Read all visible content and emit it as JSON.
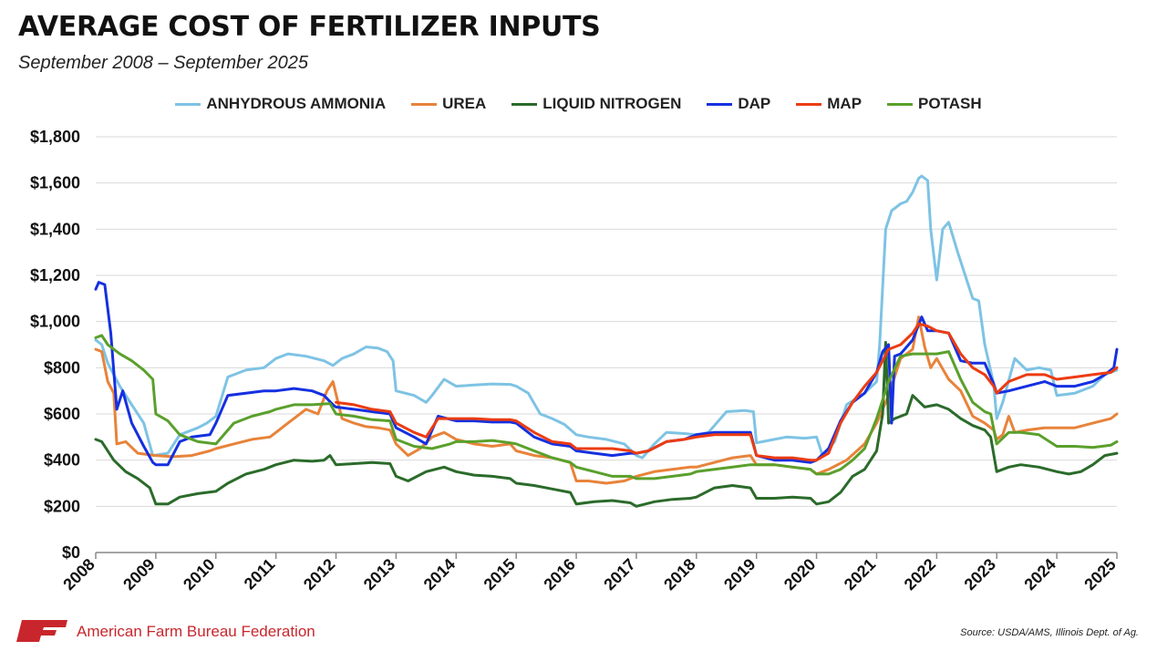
{
  "header": {
    "title": "AVERAGE COST OF FERTILIZER INPUTS",
    "subtitle": "September 2008 – September 2025"
  },
  "footer": {
    "organization": "American Farm Bureau Federation",
    "source": "Source: USDA/AMS, Illinois Dept. of Ag.",
    "logo_color": "#c8262c"
  },
  "chart_data": {
    "type": "line",
    "title": "AVERAGE COST OF FERTILIZER INPUTS",
    "subtitle": "September 2008 – September 2025",
    "xlabel": "",
    "ylabel": "",
    "xlim": [
      2008,
      2025
    ],
    "ylim": [
      0,
      1800
    ],
    "grid": true,
    "legend_position": "top-center",
    "x_ticks": [
      2008,
      2009,
      2010,
      2011,
      2012,
      2013,
      2014,
      2015,
      2016,
      2017,
      2018,
      2019,
      2020,
      2021,
      2022,
      2023,
      2024,
      2025
    ],
    "x_tick_labels": [
      "2008",
      "2009",
      "2010",
      "2011",
      "2012",
      "2013",
      "2014",
      "2015",
      "2016",
      "2017",
      "2018",
      "2019",
      "2020",
      "2021",
      "2022",
      "2023",
      "2024",
      "2025"
    ],
    "y_ticks": [
      0,
      200,
      400,
      600,
      800,
      1000,
      1200,
      1400,
      1600,
      1800
    ],
    "y_tick_labels": [
      "$0",
      "$200",
      "$400",
      "$600",
      "$800",
      "$1,000",
      "$1,200",
      "$1,400",
      "$1,600",
      "$1,800"
    ],
    "series": [
      {
        "name": "ANHYDROUS AMMONIA",
        "color": "#7ec3e4",
        "x": [
          2008.0,
          2008.1,
          2008.2,
          2008.4,
          2008.6,
          2008.8,
          2008.95,
          2009.2,
          2009.4,
          2009.7,
          2009.85,
          2010.0,
          2010.2,
          2010.5,
          2010.8,
          2011.0,
          2011.2,
          2011.5,
          2011.8,
          2011.95,
          2012.1,
          2012.3,
          2012.5,
          2012.7,
          2012.85,
          2012.95,
          2013.0,
          2013.3,
          2013.5,
          2013.6,
          2013.8,
          2014.0,
          2014.3,
          2014.6,
          2014.9,
          2015.0,
          2015.2,
          2015.4,
          2015.6,
          2015.8,
          2016.0,
          2016.2,
          2016.5,
          2016.8,
          2017.0,
          2017.1,
          2017.3,
          2017.5,
          2017.8,
          2018.0,
          2018.2,
          2018.5,
          2018.8,
          2018.95,
          2019.0,
          2019.2,
          2019.5,
          2019.8,
          2020.0,
          2020.1,
          2020.3,
          2020.5,
          2020.8,
          2021.0,
          2021.05,
          2021.1,
          2021.15,
          2021.25,
          2021.4,
          2021.5,
          2021.6,
          2021.7,
          2021.75,
          2021.85,
          2021.9,
          2022.0,
          2022.1,
          2022.2,
          2022.35,
          2022.5,
          2022.6,
          2022.7,
          2022.8,
          2022.95,
          2023.0,
          2023.1,
          2023.3,
          2023.5,
          2023.7,
          2023.9,
          2024.0,
          2024.3,
          2024.6,
          2024.8,
          2025.0
        ],
        "y": [
          920,
          900,
          820,
          720,
          640,
          560,
          420,
          430,
          510,
          540,
          560,
          590,
          760,
          790,
          800,
          840,
          860,
          850,
          830,
          810,
          840,
          860,
          890,
          885,
          870,
          830,
          700,
          680,
          650,
          680,
          750,
          720,
          725,
          730,
          728,
          720,
          690,
          600,
          580,
          555,
          510,
          500,
          490,
          470,
          420,
          410,
          470,
          520,
          515,
          510,
          520,
          610,
          615,
          610,
          475,
          485,
          500,
          495,
          500,
          420,
          480,
          640,
          690,
          740,
          900,
          1150,
          1400,
          1480,
          1510,
          1520,
          1560,
          1620,
          1630,
          1610,
          1400,
          1180,
          1400,
          1430,
          1300,
          1180,
          1100,
          1090,
          900,
          730,
          580,
          650,
          840,
          790,
          800,
          790,
          680,
          690,
          720,
          770,
          790
        ]
      },
      {
        "name": "UREA",
        "color": "#e8833a",
        "x": [
          2008.0,
          2008.1,
          2008.2,
          2008.3,
          2008.35,
          2008.5,
          2008.7,
          2009.0,
          2009.3,
          2009.6,
          2009.9,
          2010.0,
          2010.3,
          2010.6,
          2010.9,
          2011.0,
          2011.2,
          2011.5,
          2011.7,
          2011.85,
          2011.95,
          2012.1,
          2012.3,
          2012.5,
          2012.7,
          2012.9,
          2013.0,
          2013.2,
          2013.4,
          2013.6,
          2013.8,
          2014.0,
          2014.3,
          2014.6,
          2014.9,
          2015.0,
          2015.3,
          2015.6,
          2015.9,
          2016.0,
          2016.2,
          2016.5,
          2016.8,
          2017.0,
          2017.3,
          2017.6,
          2017.9,
          2018.0,
          2018.3,
          2018.6,
          2018.9,
          2019.0,
          2019.3,
          2019.6,
          2019.9,
          2020.0,
          2020.2,
          2020.5,
          2020.8,
          2021.0,
          2021.2,
          2021.4,
          2021.6,
          2021.7,
          2021.8,
          2021.9,
          2022.0,
          2022.2,
          2022.4,
          2022.6,
          2022.8,
          2022.95,
          2023.0,
          2023.1,
          2023.2,
          2023.3,
          2023.5,
          2023.8,
          2024.0,
          2024.3,
          2024.6,
          2024.9,
          2025.0
        ],
        "y": [
          880,
          870,
          740,
          690,
          470,
          480,
          430,
          420,
          415,
          420,
          440,
          450,
          470,
          490,
          500,
          520,
          560,
          620,
          600,
          700,
          740,
          580,
          560,
          545,
          540,
          530,
          470,
          420,
          450,
          500,
          520,
          490,
          470,
          460,
          470,
          440,
          420,
          410,
          390,
          310,
          310,
          300,
          310,
          330,
          350,
          360,
          370,
          370,
          390,
          410,
          420,
          380,
          380,
          370,
          360,
          340,
          360,
          400,
          470,
          560,
          680,
          840,
          880,
          1020,
          890,
          800,
          840,
          750,
          700,
          590,
          560,
          530,
          490,
          510,
          590,
          520,
          530,
          540,
          540,
          540,
          560,
          580,
          600
        ]
      },
      {
        "name": "LIQUID NITROGEN",
        "color": "#2b6b2a",
        "x": [
          2008.0,
          2008.1,
          2008.3,
          2008.5,
          2008.7,
          2008.9,
          2009.0,
          2009.2,
          2009.4,
          2009.7,
          2010.0,
          2010.2,
          2010.5,
          2010.8,
          2011.0,
          2011.3,
          2011.6,
          2011.8,
          2011.9,
          2012.0,
          2012.3,
          2012.6,
          2012.9,
          2013.0,
          2013.2,
          2013.5,
          2013.8,
          2014.0,
          2014.3,
          2014.6,
          2014.9,
          2015.0,
          2015.3,
          2015.6,
          2015.9,
          2016.0,
          2016.3,
          2016.6,
          2016.9,
          2017.0,
          2017.3,
          2017.6,
          2017.9,
          2018.0,
          2018.3,
          2018.6,
          2018.9,
          2019.0,
          2019.3,
          2019.6,
          2019.9,
          2020.0,
          2020.2,
          2020.4,
          2020.6,
          2020.8,
          2021.0,
          2021.1,
          2021.15,
          2021.2,
          2021.3,
          2021.5,
          2021.6,
          2021.8,
          2022.0,
          2022.2,
          2022.4,
          2022.6,
          2022.8,
          2022.9,
          2023.0,
          2023.2,
          2023.4,
          2023.7,
          2024.0,
          2024.2,
          2024.4,
          2024.6,
          2024.8,
          2025.0
        ],
        "y": [
          490,
          480,
          400,
          350,
          320,
          280,
          210,
          210,
          240,
          255,
          265,
          300,
          340,
          360,
          380,
          400,
          395,
          400,
          420,
          380,
          385,
          390,
          385,
          330,
          310,
          350,
          370,
          350,
          335,
          330,
          320,
          300,
          290,
          275,
          260,
          210,
          220,
          225,
          215,
          200,
          220,
          230,
          235,
          240,
          280,
          290,
          280,
          235,
          235,
          240,
          235,
          210,
          220,
          260,
          330,
          360,
          440,
          600,
          910,
          560,
          580,
          600,
          680,
          630,
          640,
          620,
          580,
          550,
          530,
          500,
          350,
          370,
          380,
          370,
          350,
          340,
          350,
          380,
          420,
          430
        ]
      },
      {
        "name": "DAP",
        "color": "#1530e0",
        "x": [
          2008.0,
          2008.05,
          2008.15,
          2008.25,
          2008.35,
          2008.45,
          2008.6,
          2008.8,
          2008.95,
          2009.0,
          2009.2,
          2009.4,
          2009.6,
          2009.9,
          2010.0,
          2010.2,
          2010.5,
          2010.8,
          2011.0,
          2011.3,
          2011.6,
          2011.8,
          2011.95,
          2012.0,
          2012.3,
          2012.6,
          2012.9,
          2013.0,
          2013.3,
          2013.5,
          2013.7,
          2014.0,
          2014.3,
          2014.6,
          2014.9,
          2015.0,
          2015.3,
          2015.6,
          2015.9,
          2016.0,
          2016.3,
          2016.6,
          2016.9,
          2017.0,
          2017.2,
          2017.5,
          2017.8,
          2018.0,
          2018.3,
          2018.6,
          2018.9,
          2019.0,
          2019.3,
          2019.6,
          2019.9,
          2020.0,
          2020.2,
          2020.4,
          2020.6,
          2020.8,
          2021.0,
          2021.1,
          2021.2,
          2021.25,
          2021.3,
          2021.4,
          2021.6,
          2021.75,
          2021.85,
          2022.0,
          2022.2,
          2022.4,
          2022.6,
          2022.8,
          2022.95,
          2023.0,
          2023.2,
          2023.5,
          2023.8,
          2024.0,
          2024.3,
          2024.6,
          2024.8,
          2024.95,
          2025.0
        ],
        "y": [
          1140,
          1170,
          1160,
          950,
          620,
          700,
          560,
          460,
          390,
          380,
          380,
          480,
          500,
          510,
          560,
          680,
          690,
          700,
          700,
          710,
          700,
          680,
          640,
          630,
          620,
          610,
          600,
          540,
          500,
          470,
          590,
          570,
          570,
          565,
          565,
          560,
          500,
          470,
          460,
          440,
          430,
          420,
          430,
          430,
          440,
          480,
          490,
          510,
          520,
          520,
          520,
          420,
          400,
          400,
          390,
          400,
          450,
          570,
          650,
          690,
          780,
          870,
          900,
          560,
          850,
          860,
          920,
          1020,
          960,
          960,
          950,
          830,
          820,
          820,
          730,
          690,
          700,
          720,
          740,
          720,
          720,
          740,
          770,
          800,
          880
        ]
      },
      {
        "name": "MAP",
        "color": "#ec3c12",
        "x": [
          2012.0,
          2012.3,
          2012.6,
          2012.9,
          2013.0,
          2013.3,
          2013.5,
          2013.7,
          2014.0,
          2014.3,
          2014.6,
          2014.9,
          2015.0,
          2015.3,
          2015.6,
          2015.9,
          2016.0,
          2016.3,
          2016.6,
          2016.9,
          2017.0,
          2017.2,
          2017.5,
          2017.8,
          2018.0,
          2018.3,
          2018.6,
          2018.9,
          2019.0,
          2019.3,
          2019.6,
          2019.9,
          2020.0,
          2020.2,
          2020.4,
          2020.6,
          2020.8,
          2021.0,
          2021.2,
          2021.4,
          2021.6,
          2021.7,
          2021.85,
          2022.0,
          2022.2,
          2022.4,
          2022.6,
          2022.8,
          2022.95,
          2023.0,
          2023.2,
          2023.5,
          2023.8,
          2024.0,
          2024.3,
          2024.6,
          2024.9,
          2025.0
        ],
        "y": [
          650,
          640,
          620,
          610,
          560,
          520,
          500,
          580,
          580,
          580,
          575,
          575,
          570,
          520,
          480,
          470,
          450,
          450,
          450,
          440,
          430,
          440,
          480,
          490,
          500,
          510,
          510,
          510,
          420,
          410,
          410,
          400,
          400,
          430,
          560,
          650,
          720,
          780,
          880,
          900,
          950,
          990,
          980,
          960,
          950,
          860,
          800,
          770,
          720,
          690,
          740,
          770,
          770,
          750,
          760,
          770,
          780,
          800
        ]
      },
      {
        "name": "POTASH",
        "color": "#5aa02c",
        "x": [
          2008.0,
          2008.1,
          2008.2,
          2008.4,
          2008.6,
          2008.8,
          2008.95,
          2009.0,
          2009.2,
          2009.4,
          2009.7,
          2010.0,
          2010.3,
          2010.6,
          2010.9,
          2011.0,
          2011.3,
          2011.6,
          2011.9,
          2012.0,
          2012.3,
          2012.6,
          2012.9,
          2013.0,
          2013.3,
          2013.6,
          2013.9,
          2014.0,
          2014.3,
          2014.6,
          2014.9,
          2015.0,
          2015.3,
          2015.6,
          2015.9,
          2016.0,
          2016.3,
          2016.6,
          2016.9,
          2017.0,
          2017.3,
          2017.6,
          2017.9,
          2018.0,
          2018.3,
          2018.6,
          2018.9,
          2019.0,
          2019.3,
          2019.6,
          2019.9,
          2020.0,
          2020.2,
          2020.4,
          2020.6,
          2020.8,
          2021.0,
          2021.2,
          2021.4,
          2021.6,
          2021.8,
          2022.0,
          2022.2,
          2022.4,
          2022.6,
          2022.8,
          2022.9,
          2023.0,
          2023.2,
          2023.4,
          2023.7,
          2024.0,
          2024.3,
          2024.6,
          2024.9,
          2025.0
        ],
        "y": [
          930,
          940,
          900,
          860,
          830,
          790,
          750,
          600,
          570,
          510,
          480,
          470,
          560,
          590,
          610,
          620,
          640,
          640,
          645,
          600,
          590,
          575,
          570,
          490,
          460,
          450,
          470,
          480,
          480,
          485,
          475,
          470,
          440,
          410,
          390,
          370,
          350,
          330,
          330,
          320,
          320,
          330,
          340,
          350,
          360,
          370,
          380,
          380,
          380,
          370,
          360,
          340,
          340,
          360,
          400,
          450,
          580,
          740,
          850,
          860,
          860,
          860,
          870,
          750,
          650,
          610,
          600,
          470,
          520,
          520,
          510,
          460,
          460,
          455,
          465,
          480
        ]
      }
    ]
  }
}
